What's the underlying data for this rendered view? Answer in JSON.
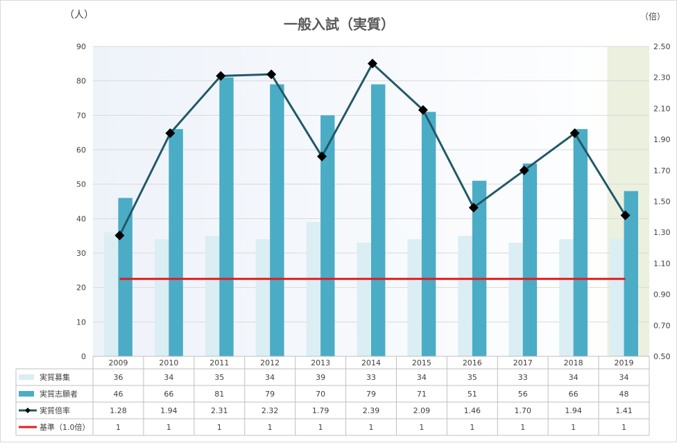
{
  "units": {
    "left": "（人）",
    "right": "（倍）"
  },
  "chart_data": {
    "type": "bar",
    "title": "一般入試（実質）",
    "categories": [
      "2009",
      "2010",
      "2011",
      "2012",
      "2013",
      "2014",
      "2015",
      "2016",
      "2017",
      "2018",
      "2019"
    ],
    "left_axis": {
      "ylim": [
        0,
        90
      ],
      "ticks": [
        "0",
        "10",
        "20",
        "30",
        "40",
        "50",
        "60",
        "70",
        "80",
        "90"
      ]
    },
    "right_axis": {
      "ylim": [
        0.5,
        2.5
      ],
      "ticks": [
        "0.50",
        "0.70",
        "0.90",
        "1.10",
        "1.30",
        "1.50",
        "1.70",
        "1.90",
        "2.10",
        "2.30",
        "2.50"
      ]
    },
    "series": [
      {
        "name": "実質募集",
        "type": "bar",
        "axis": "left",
        "color": "#daeef3",
        "values": [
          36,
          34,
          35,
          34,
          39,
          33,
          34,
          35,
          33,
          34,
          34
        ],
        "labels": [
          "36",
          "34",
          "35",
          "34",
          "39",
          "33",
          "34",
          "35",
          "33",
          "34",
          "34"
        ]
      },
      {
        "name": "実質志願者",
        "type": "bar",
        "axis": "left",
        "color": "#4bacc6",
        "values": [
          46,
          66,
          81,
          79,
          70,
          79,
          71,
          51,
          56,
          66,
          48
        ],
        "labels": [
          "46",
          "66",
          "81",
          "79",
          "70",
          "79",
          "71",
          "51",
          "56",
          "66",
          "48"
        ]
      },
      {
        "name": "実質倍率",
        "type": "line",
        "axis": "right",
        "color": "#215968",
        "marker": "diamond",
        "values": [
          1.28,
          1.94,
          2.31,
          2.32,
          1.79,
          2.39,
          2.09,
          1.46,
          1.7,
          1.94,
          1.41
        ],
        "labels": [
          "1.28",
          "1.94",
          "2.31",
          "2.32",
          "1.79",
          "2.39",
          "2.09",
          "1.46",
          "1.70",
          "1.94",
          "1.41"
        ]
      },
      {
        "name": "基準（1.0倍）",
        "type": "line",
        "axis": "right",
        "color": "#e31a1c",
        "values": [
          1,
          1,
          1,
          1,
          1,
          1,
          1,
          1,
          1,
          1,
          1
        ],
        "labels": [
          "1",
          "1",
          "1",
          "1",
          "1",
          "1",
          "1",
          "1",
          "1",
          "1",
          "1"
        ]
      }
    ],
    "highlight_category": "2019",
    "plot_background": [
      "#eef3fa",
      "#ffffff"
    ],
    "highlight_color": "#ebf0df",
    "grid": true,
    "legend": "data-table-below"
  }
}
